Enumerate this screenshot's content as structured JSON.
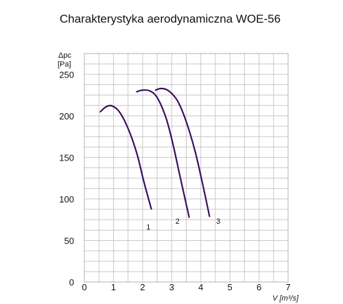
{
  "chart_data": {
    "type": "line",
    "title": "Charakterystyka aerodynamiczna WOE-56",
    "ylabel_line1": "Δpc",
    "ylabel_line2": "[Pa]",
    "xlabel": "V [m³/s]",
    "xlim": [
      0,
      7
    ],
    "ylim": [
      0,
      275
    ],
    "x_ticks": [
      "0",
      "1",
      "2",
      "3",
      "4",
      "5",
      "6",
      "7"
    ],
    "y_ticks": [
      {
        "value": 0,
        "label": "0"
      },
      {
        "value": 50,
        "label": "50"
      },
      {
        "value": 100,
        "label": "100"
      },
      {
        "value": 150,
        "label": "150"
      },
      {
        "value": 200,
        "label": "200"
      },
      {
        "value": 250,
        "label": "250"
      }
    ],
    "curve_color": "#3a0e5c",
    "series": [
      {
        "label": "1",
        "label_at": [
          2.2,
          63
        ],
        "points": [
          [
            0.55,
            205
          ],
          [
            0.75,
            211
          ],
          [
            0.95,
            212
          ],
          [
            1.2,
            205
          ],
          [
            1.5,
            185
          ],
          [
            1.8,
            155
          ],
          [
            2.05,
            120
          ],
          [
            2.3,
            88
          ]
        ]
      },
      {
        "label": "2",
        "label_at": [
          3.2,
          70
        ],
        "points": [
          [
            1.8,
            229
          ],
          [
            2.0,
            231
          ],
          [
            2.25,
            230
          ],
          [
            2.5,
            222
          ],
          [
            2.8,
            198
          ],
          [
            3.05,
            165
          ],
          [
            3.3,
            125
          ],
          [
            3.6,
            78
          ]
        ]
      },
      {
        "label": "3",
        "label_at": [
          4.6,
          70
        ],
        "points": [
          [
            2.45,
            231
          ],
          [
            2.65,
            233
          ],
          [
            2.9,
            230
          ],
          [
            3.2,
            218
          ],
          [
            3.5,
            193
          ],
          [
            3.8,
            158
          ],
          [
            4.05,
            120
          ],
          [
            4.3,
            79
          ]
        ]
      }
    ]
  }
}
